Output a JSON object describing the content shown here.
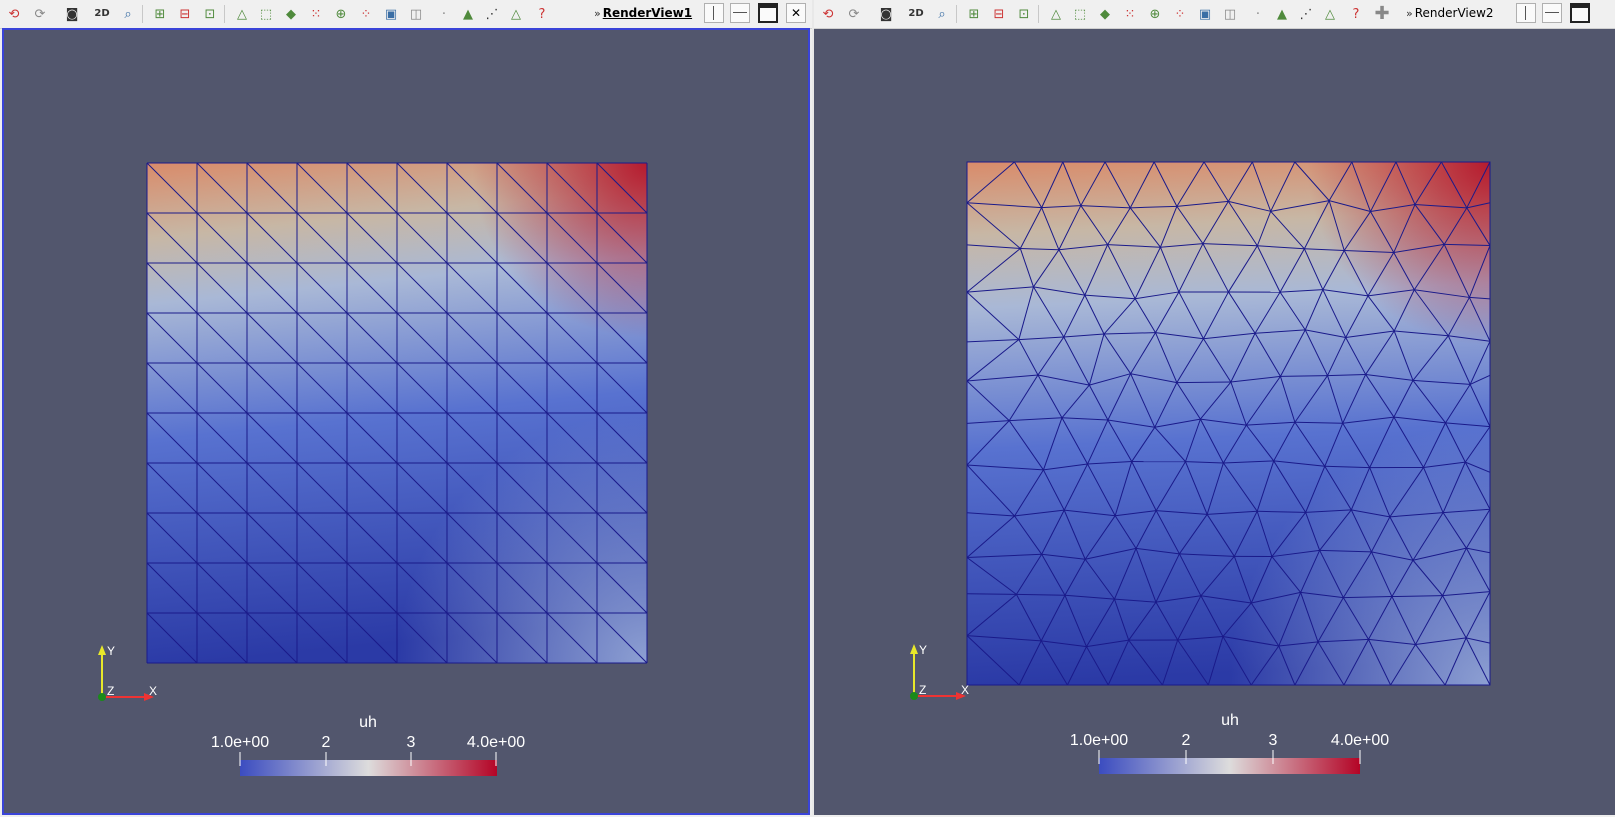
{
  "views": [
    {
      "name": "RenderView1",
      "active": true,
      "toolbar_mode_label": "2D",
      "mesh": "structured",
      "colorbar": {
        "title": "uh",
        "ticks": [
          "1.0e+00",
          "2",
          "3",
          "4.0e+00"
        ],
        "range": [
          1.0,
          4.0
        ]
      },
      "axes": {
        "x": "X",
        "y": "Y",
        "z": "Z"
      }
    },
    {
      "name": "RenderView2",
      "active": false,
      "toolbar_mode_label": "2D",
      "mesh": "unstructured",
      "colorbar": {
        "title": "uh",
        "ticks": [
          "1.0e+00",
          "2",
          "3",
          "4.0e+00"
        ],
        "range": [
          1.0,
          4.0
        ]
      },
      "axes": {
        "x": "X",
        "y": "Y",
        "z": "Z"
      }
    }
  ],
  "colors": {
    "background": "#52566d",
    "mesh_edges": "#1a1a8a",
    "colormap": [
      "#3b4cc0",
      "#dddcdc",
      "#b40426"
    ],
    "active_border": "#3a44d8"
  },
  "toolbar_icons": [
    "reset-camera",
    "zoom-closest",
    "capture-screenshot",
    "2d-3d-toggle",
    "zoom-to-box",
    "select-cells-on",
    "select-points-on",
    "select-cells-frustum",
    "select-points-frustum",
    "select-block",
    "interactive-select-cells",
    "interactive-select-points",
    "hover-points",
    "hover-cells",
    "grow-selection",
    "shrink-selection",
    "clear-selection",
    "split-horizontal",
    "split-vertical",
    "maximize",
    "close"
  ]
}
